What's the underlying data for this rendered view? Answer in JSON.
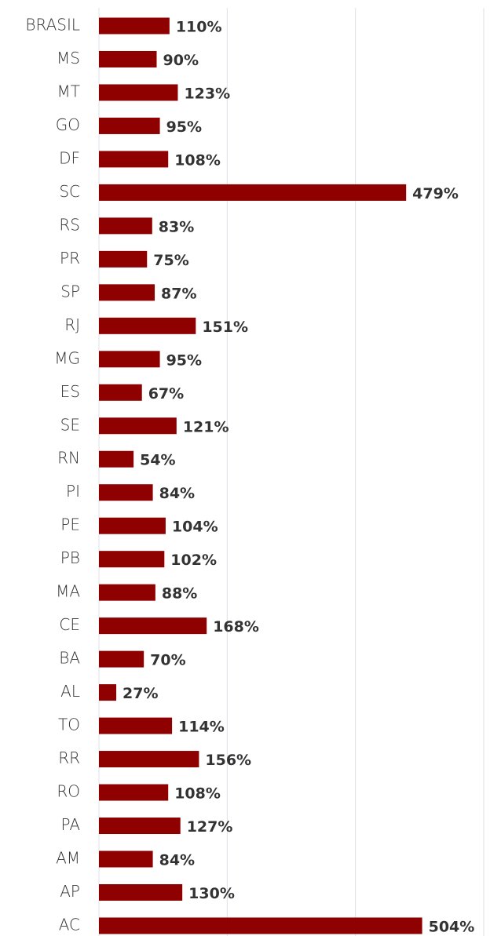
{
  "chart_data": {
    "type": "bar",
    "orientation": "horizontal",
    "categories": [
      "BRASIL",
      "MS",
      "MT",
      "GO",
      "DF",
      "SC",
      "RS",
      "PR",
      "SP",
      "RJ",
      "MG",
      "ES",
      "SE",
      "RN",
      "PI",
      "PE",
      "PB",
      "MA",
      "CE",
      "BA",
      "AL",
      "TO",
      "RR",
      "RO",
      "PA",
      "AM",
      "AP",
      "AC"
    ],
    "values": [
      110,
      90,
      123,
      95,
      108,
      479,
      83,
      75,
      87,
      151,
      95,
      67,
      121,
      54,
      84,
      104,
      102,
      88,
      168,
      70,
      27,
      114,
      156,
      108,
      127,
      84,
      130,
      504
    ],
    "value_labels": [
      "110%",
      "90%",
      "123%",
      "95%",
      "108%",
      "479%",
      "83%",
      "75%",
      "87%",
      "151%",
      "95%",
      "67%",
      "121%",
      "54%",
      "84%",
      "104%",
      "102%",
      "88%",
      "168%",
      "70%",
      "27%",
      "114%",
      "156%",
      "108%",
      "127%",
      "84%",
      "130%",
      "504%"
    ],
    "color": "#8f0000",
    "xlim": [
      0,
      600
    ],
    "xticks": [
      0,
      200,
      400,
      600
    ],
    "grid": true
  }
}
